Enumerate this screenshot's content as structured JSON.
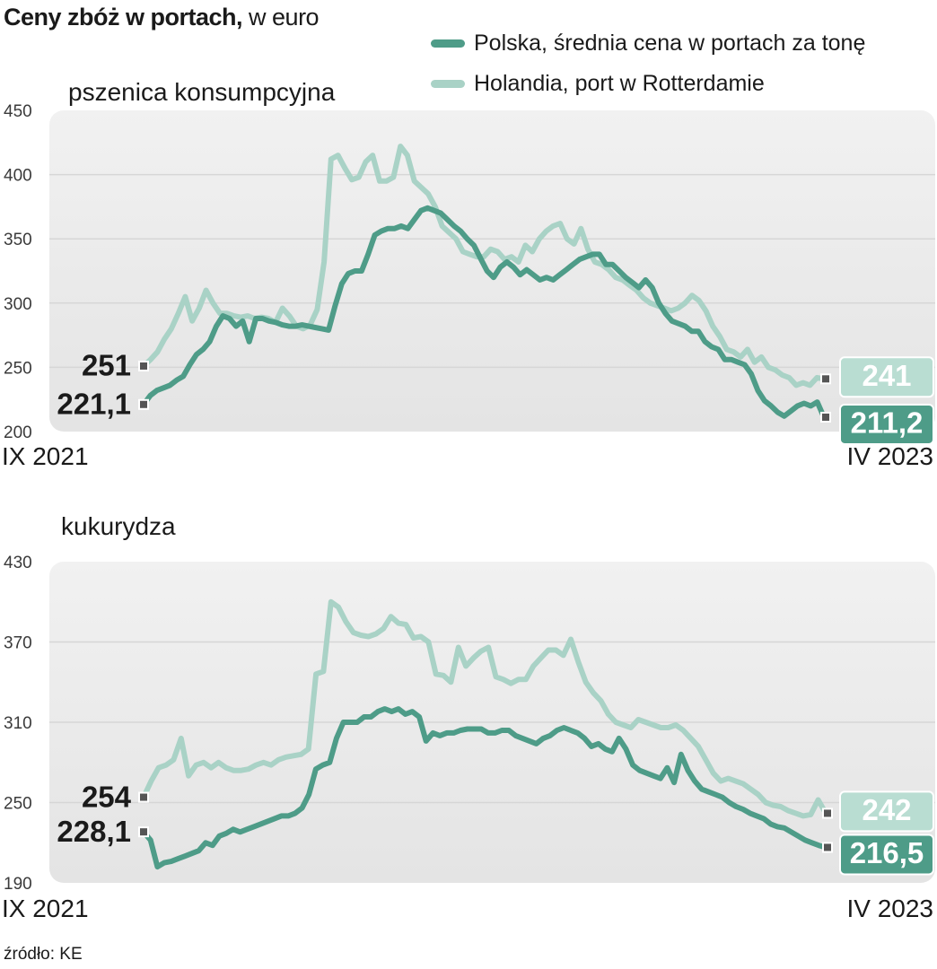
{
  "title": {
    "bold": "Ceny zbóż w portach,",
    "normal": " w euro"
  },
  "legend": [
    {
      "label": "Polska, średnia cena w portach za tonę",
      "color": "#4e9c88"
    },
    {
      "label": "Holandia, port w Rotterdamie",
      "color": "#a9d2c6"
    }
  ],
  "source": "źródło: KE",
  "colors": {
    "pl": "#4e9c88",
    "nl": "#a9d2c6",
    "panel": "#ebebeb",
    "grid": "#d6d6d6"
  },
  "chart_data": [
    {
      "type": "line",
      "title": "pszenica konsumpcyjna",
      "x_start_label": "IX 2021",
      "x_end_label": "IV 2023",
      "ylim": [
        200,
        450
      ],
      "yticks": [
        200,
        250,
        300,
        350,
        400,
        450
      ],
      "grid": true,
      "series": [
        {
          "name": "Polska, średnia cena w portach za tonę",
          "start_label": "221,1",
          "end_label": "211,2",
          "values": [
            221.1,
            228,
            232,
            234,
            236,
            240,
            243,
            252,
            260,
            264,
            270,
            282,
            290,
            288,
            282,
            286,
            270,
            288,
            288,
            286,
            285,
            283,
            282,
            282,
            283,
            282,
            281,
            280,
            279,
            298,
            315,
            323,
            325,
            325,
            338,
            353,
            356,
            358,
            358,
            360,
            358,
            365,
            372,
            374,
            372,
            370,
            365,
            360,
            356,
            350,
            345,
            335,
            325,
            320,
            328,
            332,
            328,
            322,
            326,
            322,
            318,
            320,
            318,
            322,
            326,
            330,
            334,
            336,
            338,
            338,
            330,
            330,
            325,
            320,
            316,
            312,
            318,
            312,
            300,
            292,
            286,
            284,
            282,
            278,
            278,
            270,
            266,
            264,
            256,
            256,
            254,
            252,
            245,
            232,
            224,
            220,
            215,
            212,
            216,
            220,
            222,
            220,
            223,
            211.2
          ]
        },
        {
          "name": "Holandia, port w Rotterdamie",
          "start_label": "251",
          "end_label": "241",
          "values": [
            251,
            256,
            262,
            272,
            280,
            292,
            305,
            286,
            296,
            310,
            300,
            292,
            292,
            290,
            289,
            290,
            288,
            289,
            288,
            285,
            296,
            290,
            282,
            280,
            283,
            295,
            332,
            412,
            415,
            405,
            396,
            398,
            410,
            415,
            395,
            395,
            398,
            422,
            415,
            395,
            390,
            385,
            375,
            360,
            355,
            350,
            340,
            338,
            336,
            336,
            342,
            340,
            334,
            336,
            332,
            345,
            340,
            350,
            356,
            360,
            362,
            350,
            346,
            358,
            342,
            332,
            330,
            326,
            320,
            318,
            314,
            310,
            304,
            300,
            298,
            296,
            294,
            296,
            300,
            306,
            302,
            294,
            282,
            274,
            264,
            262,
            258,
            264,
            254,
            258,
            250,
            248,
            244,
            242,
            236,
            238,
            236,
            242,
            241
          ]
        }
      ]
    },
    {
      "type": "line",
      "title": "kukurydza",
      "x_start_label": "IX 2021",
      "x_end_label": "IV 2023",
      "ylim": [
        190,
        430
      ],
      "yticks": [
        190,
        250,
        310,
        370,
        430
      ],
      "grid": true,
      "series": [
        {
          "name": "Polska, średnia cena w portach za tonę",
          "start_label": "228,1",
          "end_label": "216,5",
          "values": [
            228.1,
            222,
            202,
            205,
            206,
            208,
            210,
            212,
            214,
            220,
            218,
            225,
            227,
            230,
            228,
            230,
            232,
            234,
            236,
            238,
            240,
            240,
            242,
            246,
            256,
            275,
            278,
            280,
            298,
            310,
            310,
            310,
            314,
            314,
            318,
            320,
            318,
            320,
            316,
            318,
            314,
            296,
            302,
            300,
            302,
            302,
            304,
            305,
            305,
            305,
            302,
            302,
            304,
            304,
            300,
            298,
            296,
            294,
            298,
            300,
            304,
            306,
            304,
            302,
            298,
            292,
            294,
            290,
            288,
            298,
            290,
            278,
            274,
            272,
            270,
            268,
            276,
            265,
            286,
            274,
            266,
            260,
            258,
            256,
            254,
            250,
            247,
            245,
            242,
            240,
            238,
            234,
            232,
            231,
            228,
            225,
            222,
            220,
            218,
            216.5
          ]
        },
        {
          "name": "Holandia, port w Rotterdamie",
          "start_label": "254",
          "end_label": "242",
          "values": [
            254,
            266,
            276,
            278,
            282,
            298,
            270,
            278,
            280,
            276,
            280,
            276,
            274,
            274,
            275,
            278,
            280,
            278,
            282,
            284,
            285,
            286,
            290,
            346,
            348,
            400,
            396,
            385,
            377,
            375,
            374,
            376,
            380,
            389,
            384,
            383,
            373,
            374,
            370,
            346,
            345,
            340,
            366,
            352,
            358,
            363,
            366,
            344,
            342,
            339,
            342,
            342,
            352,
            358,
            364,
            364,
            360,
            372,
            355,
            340,
            332,
            326,
            316,
            310,
            308,
            306,
            312,
            310,
            308,
            306,
            306,
            308,
            304,
            298,
            292,
            282,
            272,
            266,
            268,
            266,
            264,
            260,
            256,
            250,
            248,
            247,
            244,
            242,
            240,
            241,
            252,
            242
          ]
        }
      ]
    }
  ]
}
